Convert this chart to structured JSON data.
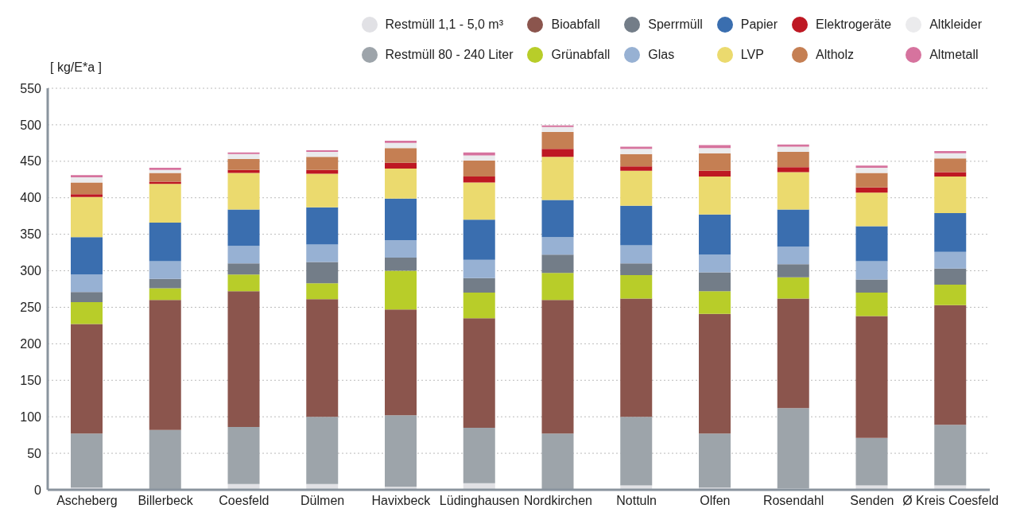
{
  "chart_data": {
    "type": "bar",
    "stacked": true,
    "ylabel": "[ kg/E*a ]",
    "categories": [
      "Ascheberg",
      "Billerbeck",
      "Coesfeld",
      "Dülmen",
      "Havixbeck",
      "Lüdinghausen",
      "Nordkirchen",
      "Nottuln",
      "Olfen",
      "Rosendahl",
      "Senden",
      "Ø Kreis Coesfeld"
    ],
    "series": [
      {
        "name": "Restmüll 1,1 - 5,0 m³",
        "color": "#e1e1e5",
        "values": [
          3,
          0,
          8,
          8,
          4,
          9,
          0,
          6,
          3,
          2,
          6,
          6
        ]
      },
      {
        "name": "Restmüll 80 - 240 Liter",
        "color": "#9da4aa",
        "values": [
          74,
          82,
          78,
          92,
          98,
          76,
          77,
          94,
          74,
          110,
          65,
          83
        ]
      },
      {
        "name": "Bioabfall",
        "color": "#8b554d",
        "values": [
          150,
          178,
          186,
          161,
          145,
          150,
          183,
          162,
          164,
          150,
          167,
          164
        ]
      },
      {
        "name": "Grünabfall",
        "color": "#b8cd29",
        "values": [
          30,
          16,
          23,
          22,
          53,
          35,
          37,
          32,
          31,
          29,
          32,
          28
        ]
      },
      {
        "name": "Sperrmüll",
        "color": "#737d88",
        "values": [
          14,
          13,
          15,
          29,
          18,
          20,
          25,
          16,
          26,
          18,
          18,
          22
        ]
      },
      {
        "name": "Glas",
        "color": "#97b1d3",
        "values": [
          24,
          24,
          24,
          24,
          24,
          25,
          24,
          25,
          24,
          24,
          25,
          23
        ]
      },
      {
        "name": "Papier",
        "color": "#3a6eaf",
        "values": [
          51,
          53,
          50,
          51,
          57,
          55,
          51,
          54,
          55,
          51,
          48,
          53
        ]
      },
      {
        "name": "LVP",
        "color": "#ebda6e",
        "values": [
          55,
          53,
          50,
          46,
          41,
          51,
          59,
          48,
          52,
          51,
          46,
          50
        ]
      },
      {
        "name": "Elektrogeräte",
        "color": "#be1823",
        "values": [
          4,
          3,
          4,
          5,
          8,
          8,
          11,
          6,
          8,
          7,
          7,
          6
        ]
      },
      {
        "name": "Altholz",
        "color": "#c57f53",
        "values": [
          16,
          12,
          15,
          18,
          20,
          22,
          23,
          17,
          24,
          21,
          20,
          19
        ]
      },
      {
        "name": "Altkleider",
        "color": "#ebebed",
        "values": [
          7,
          4,
          7,
          7,
          7,
          7,
          7,
          7,
          7,
          7,
          7,
          7
        ]
      },
      {
        "name": "Altmetall",
        "color": "#d6739e",
        "values": [
          3,
          3,
          2,
          2,
          3,
          4,
          2,
          3,
          4,
          3,
          3,
          3
        ]
      }
    ],
    "ylim": [
      0,
      550
    ],
    "yticks": [
      0,
      50,
      100,
      150,
      200,
      250,
      300,
      350,
      400,
      450,
      500,
      550
    ],
    "grid": "y",
    "legend": "top right"
  }
}
